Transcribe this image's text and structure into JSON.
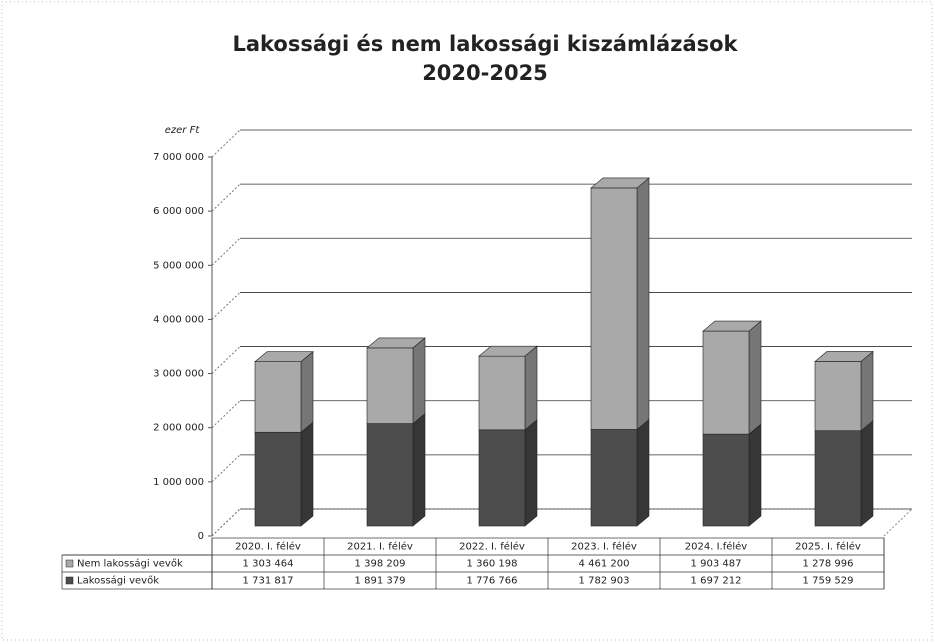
{
  "chart_data": {
    "type": "stacked-bar-3d",
    "title": "Lakossági és nem lakossági kiszámlázások",
    "subtitle": "2020-2025",
    "y_axis_label": "ezer Ft",
    "categories": [
      "2020. I. félév",
      "2021. I. félév",
      "2022. I. félév",
      "2023. I. félév",
      "2024. I.félév",
      "2025. I. félév"
    ],
    "series": [
      {
        "name": "Nem lakossági vevők",
        "color": "#a9a9a9",
        "values": [
          1303464,
          1398209,
          1360198,
          4461200,
          1903487,
          1278996
        ],
        "value_labels": [
          "1 303 464",
          "1 398 209",
          "1 360 198",
          "4 461 200",
          "1 903 487",
          "1 278 996"
        ]
      },
      {
        "name": "Lakossági vevők",
        "color": "#4d4d4d",
        "values": [
          1731817,
          1891379,
          1776766,
          1782903,
          1697212,
          1759529
        ],
        "value_labels": [
          "1 731 817",
          "1 891 379",
          "1 776 766",
          "1 782 903",
          "1 697 212",
          "1 759 529"
        ]
      }
    ],
    "ylim": [
      0,
      7000000
    ],
    "yticks": [
      0,
      {
        "value": 1000000,
        "label": "1 000 000"
      },
      {
        "value": 2000000,
        "label": "2 000 000"
      },
      {
        "value": 3000000,
        "label": "3 000 000"
      },
      {
        "value": 4000000,
        "label": "4 000 000"
      },
      {
        "value": 5000000,
        "label": "5 000 000"
      },
      {
        "value": 6000000,
        "label": "6 000 000"
      },
      {
        "value": 7000000,
        "label": "7 000 000"
      }
    ],
    "grid": true
  }
}
